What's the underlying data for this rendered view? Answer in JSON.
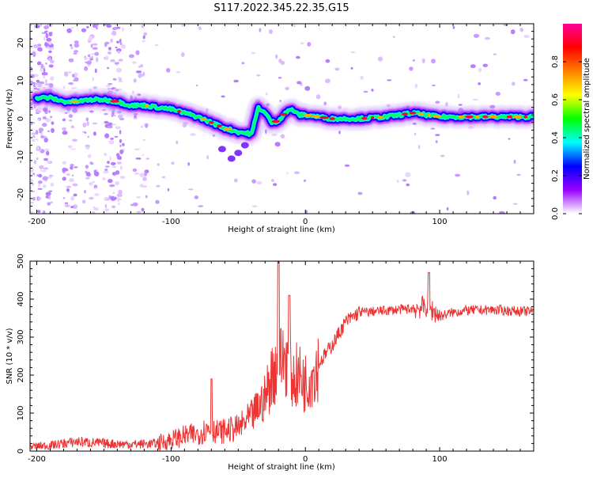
{
  "figure": {
    "title": "S117.2022.345.22.35.G15"
  },
  "chart_data": [
    {
      "type": "heatmap",
      "xlabel": "Height of straight line (km)",
      "ylabel": "Frequency (Hz)",
      "xlim": [
        -205,
        170
      ],
      "ylim": [
        -25,
        25
      ],
      "x_ticks": [
        -200,
        -100,
        0,
        100
      ],
      "y_ticks": [
        -20,
        -10,
        0,
        10,
        20
      ],
      "ridge": {
        "x": [
          -190,
          -180,
          -170,
          -160,
          -150,
          -140,
          -130,
          -120,
          -110,
          -100,
          -90,
          -80,
          -70,
          -60,
          -50,
          -40,
          -35,
          -30,
          -25,
          -20,
          -15,
          -10,
          -5,
          0,
          20,
          40,
          60,
          80,
          100,
          120,
          140,
          160,
          170
        ],
        "y": [
          5.5,
          4.5,
          4.5,
          5,
          5,
          4.5,
          3.5,
          3.5,
          3,
          2.5,
          1.5,
          0.5,
          -1,
          -2.5,
          -3.5,
          -4,
          3,
          1.5,
          -1,
          -0.5,
          1.5,
          2.5,
          1,
          1,
          0,
          0,
          0.5,
          1.5,
          0.5,
          0.5,
          0.5,
          0.5,
          0.5
        ]
      },
      "colorbar": {
        "label": "Normalized spectral amplitude",
        "range": [
          0,
          1
        ],
        "ticks": [
          0.0,
          0.2,
          0.4,
          0.6,
          0.8
        ],
        "tick_labels": [
          "0.0",
          "0.2",
          "0.4",
          "0.6",
          "0.8"
        ],
        "colors": [
          "#ffffff",
          "#9900ff",
          "#0000ff",
          "#00ffff",
          "#00ff00",
          "#ffff00",
          "#ff8000",
          "#ff0000",
          "#ff0099"
        ]
      }
    },
    {
      "type": "line",
      "xlabel": "Height of straight line (km)",
      "ylabel": "SNR (10 * v/v)",
      "xlim": [
        -205,
        170
      ],
      "ylim": [
        0,
        500
      ],
      "x_ticks": [
        -200,
        -100,
        0,
        100
      ],
      "y_ticks": [
        0,
        100,
        200,
        300,
        400,
        500
      ],
      "color": "#ee3333",
      "series": [
        {
          "x": [
            -205,
            -190,
            -170,
            -150,
            -130,
            -110,
            -100,
            -90,
            -80,
            -72,
            -65,
            -50,
            -40,
            -30,
            -25,
            -20,
            -15,
            -10,
            -5,
            0,
            10,
            20,
            30,
            40,
            60,
            80,
            90,
            95,
            100,
            110,
            120,
            140,
            160,
            170
          ],
          "values": [
            12,
            15,
            25,
            20,
            18,
            20,
            30,
            40,
            45,
            60,
            50,
            60,
            90,
            140,
            200,
            230,
            250,
            190,
            200,
            180,
            230,
            280,
            340,
            365,
            370,
            375,
            380,
            370,
            355,
            365,
            370,
            372,
            368,
            368
          ]
        }
      ],
      "spikes": [
        {
          "x": -70,
          "y": 190
        },
        {
          "x": -20,
          "y": 500
        },
        {
          "x": -12,
          "y": 410
        },
        {
          "x": 92,
          "y": 470
        }
      ]
    }
  ]
}
